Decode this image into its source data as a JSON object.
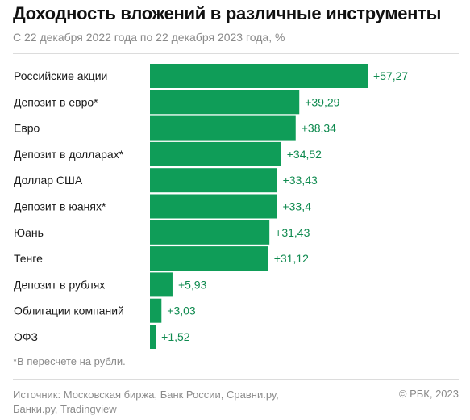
{
  "header": {
    "title": "Доходность вложений в различные инструменты",
    "subtitle": "С 22 декабря 2022 года по 22 декабря 2023 года, %"
  },
  "chart_data": {
    "type": "bar",
    "orientation": "horizontal",
    "categories": [
      "Российские акции",
      "Депозит в евро*",
      "Евро",
      "Депозит в долларах*",
      "Доллар США",
      "Депозит в юанях*",
      "Юань",
      "Тенге",
      "Депозит в рублях",
      "Облигации компаний",
      "ОФЗ"
    ],
    "values": [
      57.27,
      39.29,
      38.34,
      34.52,
      33.43,
      33.4,
      31.43,
      31.12,
      5.93,
      3.03,
      1.52
    ],
    "value_labels": [
      "+57,27",
      "+39,29",
      "+38,34",
      "+34,52",
      "+33,43",
      "+33,4",
      "+31,43",
      "+31,12",
      "+5,93",
      "+3,03",
      "+1,52"
    ],
    "xlim": [
      0,
      57.27
    ],
    "grid": false,
    "colors": {
      "bar": "#0f9d58",
      "value_text": "#0f8a4f"
    }
  },
  "footnote": "*В пересчете на рубли.",
  "source": {
    "line1": "Источник: Московская биржа, Банк России, Сравни.ру,",
    "line2": "Банки.ру, Tradingview"
  },
  "copyright": "© РБК, 2023"
}
